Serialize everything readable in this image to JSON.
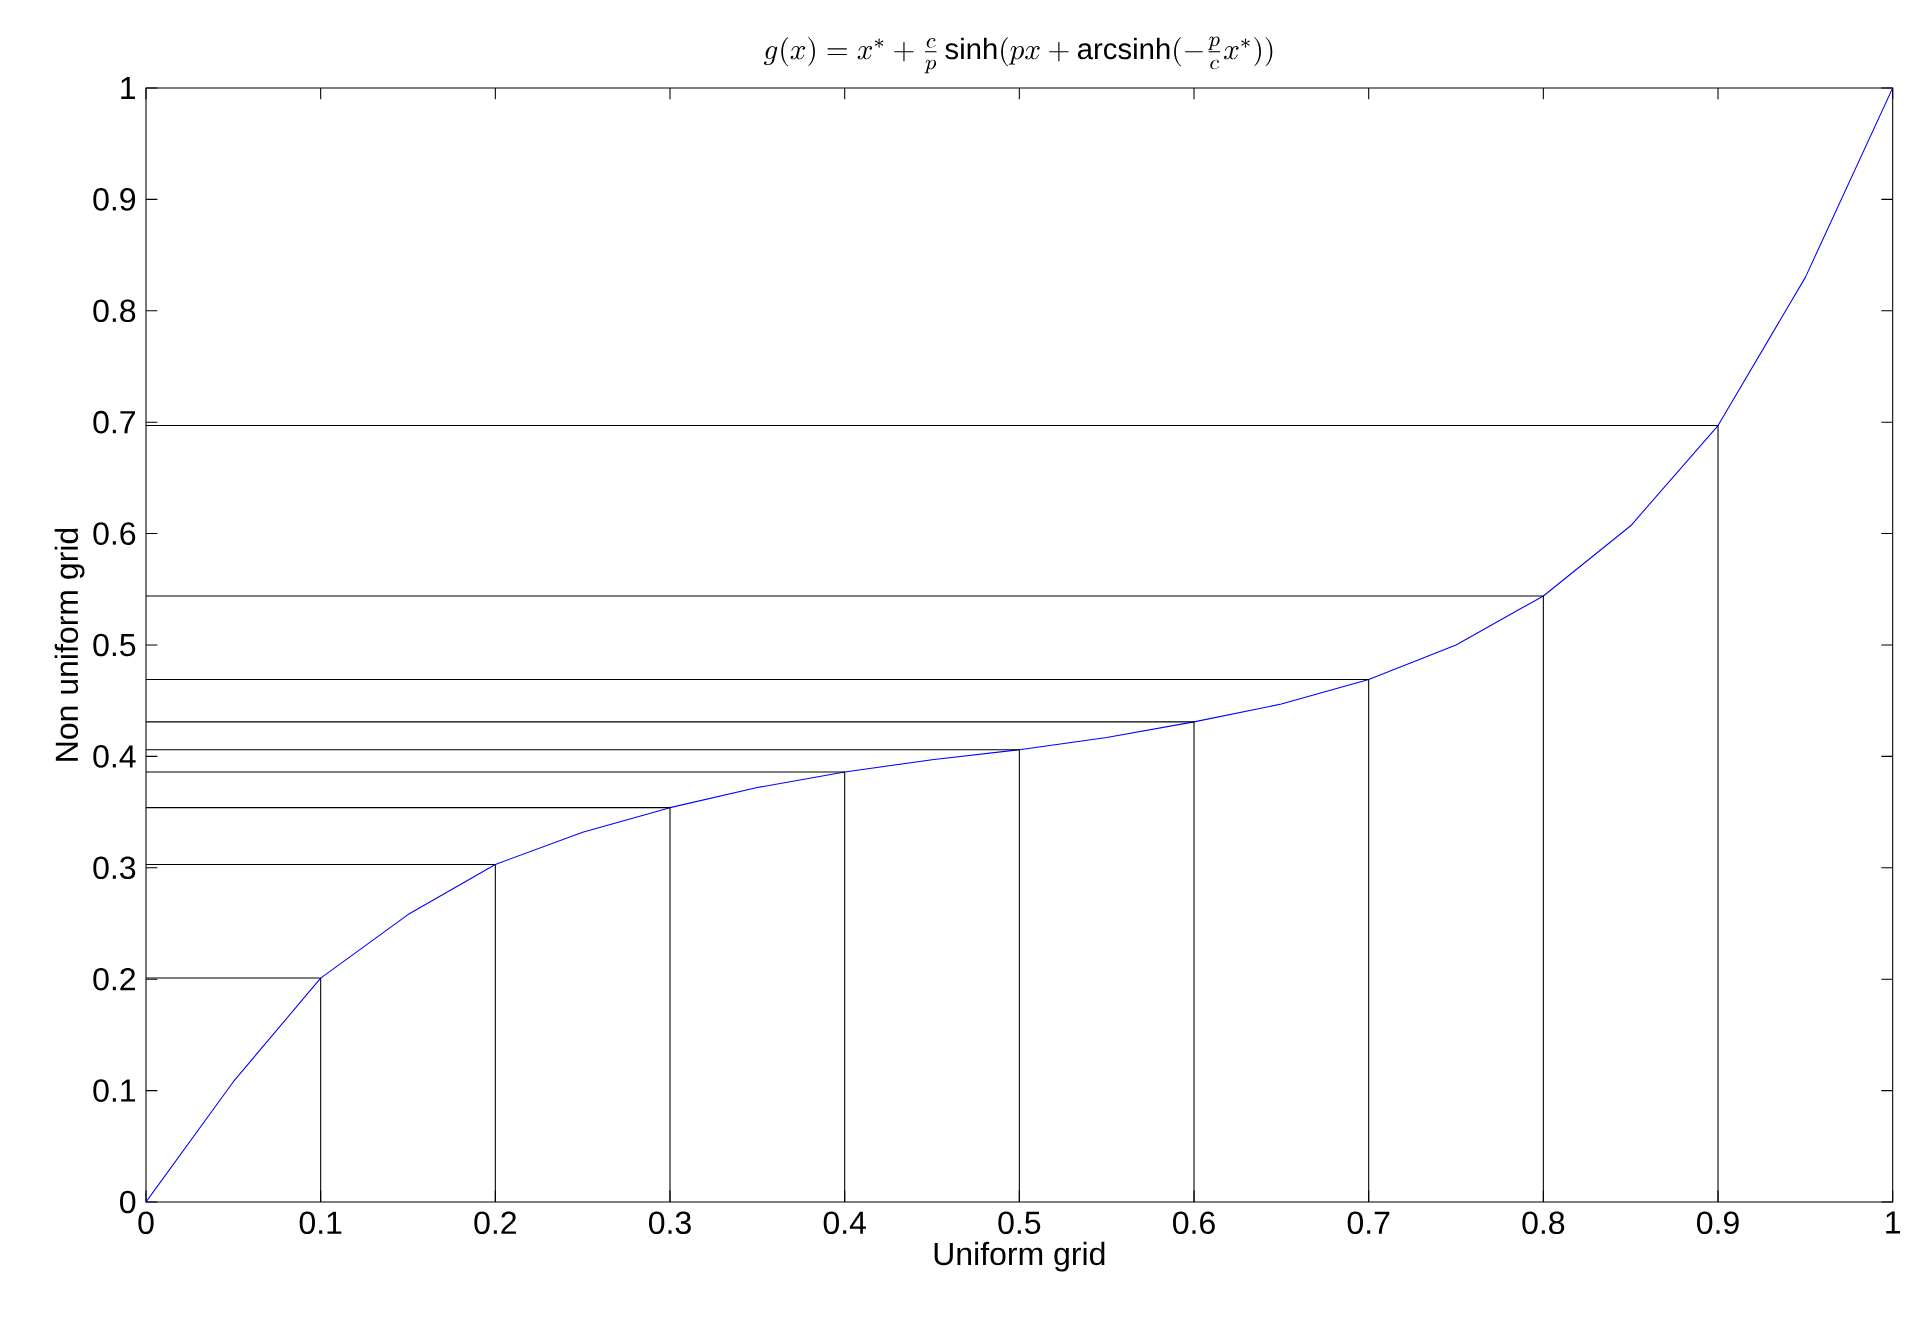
{
  "chart_data": {
    "type": "line",
    "title": "g(x) = x^{*} + \\frac{c}{p}\\sinh(px + \\mathrm{arcsinh}(-\\frac{p}{c}x^{*}))",
    "xlabel": "Uniform grid",
    "ylabel": "Non uniform grid",
    "xlim": [
      0,
      1
    ],
    "ylim": [
      0,
      1
    ],
    "xticks": [
      0,
      0.1,
      0.2,
      0.3,
      0.4,
      0.5,
      0.6,
      0.7,
      0.8,
      0.9,
      1
    ],
    "yticks": [
      0,
      0.1,
      0.2,
      0.3,
      0.4,
      0.5,
      0.6,
      0.7,
      0.8,
      0.9,
      1
    ],
    "series": [
      {
        "color": "#0000ff",
        "x": [
          0,
          0.05,
          0.1,
          0.15,
          0.2,
          0.25,
          0.3,
          0.35,
          0.4,
          0.45,
          0.5,
          0.55,
          0.6,
          0.65,
          0.7,
          0.75,
          0.8,
          0.85,
          0.9,
          0.95,
          1
        ],
        "values": [
          0,
          0.108,
          0.201,
          0.258,
          0.303,
          0.332,
          0.354,
          0.372,
          0.386,
          0.397,
          0.406,
          0.417,
          0.431,
          0.447,
          0.469,
          0.5,
          0.544,
          0.607,
          0.697,
          0.83,
          1
        ]
      },
      {
        "color": "#000000",
        "x": [
          0,
          0.1,
          0.1,
          null,
          0,
          0.2,
          0.2,
          null,
          0,
          0.3,
          0.3,
          null,
          0,
          0.4,
          0.4,
          null,
          0,
          0.5,
          0.5,
          null,
          0,
          0.6,
          0.6,
          null,
          0,
          0.7,
          0.7,
          null,
          0,
          0.8,
          0.8,
          null,
          0,
          0.9,
          0.9
        ],
        "values": [
          0.201,
          0.201,
          0,
          null,
          0.303,
          0.303,
          0,
          null,
          0.354,
          0.354,
          0,
          null,
          0.386,
          0.386,
          0,
          null,
          0.406,
          0.406,
          0,
          null,
          0.431,
          0.431,
          0,
          null,
          0.469,
          0.469,
          0,
          null,
          0.544,
          0.544,
          0,
          null,
          0.697,
          0.697,
          0
        ]
      }
    ]
  }
}
